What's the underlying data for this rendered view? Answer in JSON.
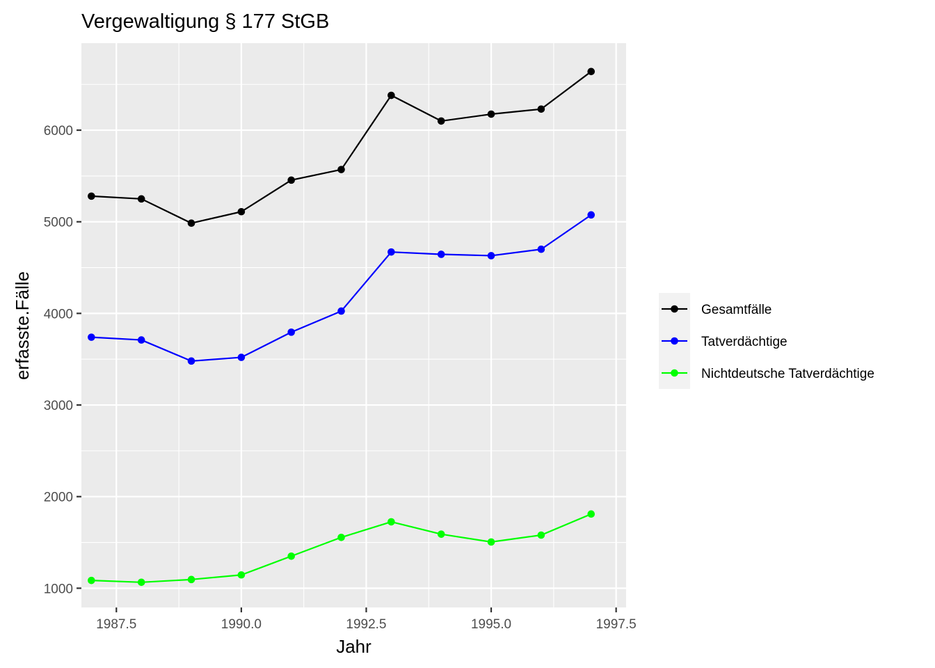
{
  "chart_data": {
    "type": "line",
    "title": "Vergewaltigung § 177 StGB",
    "xlabel": "Jahr",
    "ylabel": "erfasste.Fälle",
    "xlim": [
      1986.8,
      1997.7
    ],
    "ylim": [
      790,
      6950
    ],
    "x_ticks": [
      1987.5,
      1990.0,
      1992.5,
      1995.0,
      1997.5
    ],
    "x_tick_labels": [
      "1987.5",
      "1990.0",
      "1992.5",
      "1995.0",
      "1997.5"
    ],
    "y_ticks": [
      1000,
      2000,
      3000,
      4000,
      5000,
      6000
    ],
    "y_tick_labels": [
      "1000",
      "2000",
      "3000",
      "4000",
      "5000",
      "6000"
    ],
    "grid": true,
    "legend_position": "right",
    "x": [
      1987,
      1988,
      1989,
      1990,
      1991,
      1992,
      1993,
      1994,
      1995,
      1996,
      1997
    ],
    "series": [
      {
        "name": "Gesamtfälle",
        "color": "#000000",
        "values": [
          5280,
          5250,
          4985,
          5110,
          5455,
          5570,
          6380,
          6100,
          6175,
          6230,
          6640
        ]
      },
      {
        "name": "Tatverdächtige",
        "color": "#0000ff",
        "values": [
          3740,
          3710,
          3480,
          3520,
          3795,
          4025,
          4670,
          4645,
          4630,
          4700,
          5075
        ]
      },
      {
        "name": "Nichtdeutsche Tatverdächtige",
        "color": "#00ff00",
        "values": [
          1085,
          1065,
          1095,
          1145,
          1350,
          1555,
          1725,
          1590,
          1505,
          1580,
          1810
        ]
      }
    ]
  }
}
